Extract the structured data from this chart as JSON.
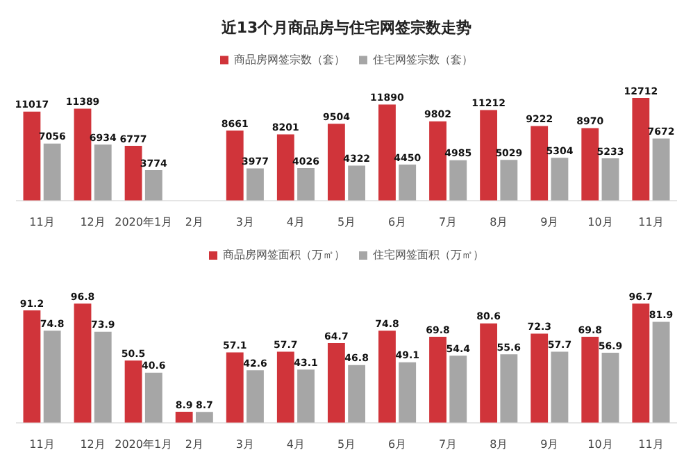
{
  "chart_data": [
    {
      "type": "bar",
      "title": "近13个月商品房与住宅网签宗数走势",
      "categories": [
        "11月",
        "12月",
        "2020年1月",
        "2月",
        "3月",
        "4月",
        "5月",
        "6月",
        "7月",
        "8月",
        "9月",
        "10月",
        "11月"
      ],
      "series": [
        {
          "name": "商品房网签宗数（套）",
          "color": "#d0343a",
          "values": [
            11017,
            11389,
            6777,
            null,
            8661,
            8201,
            9504,
            11890,
            9802,
            11212,
            9222,
            8970,
            12712
          ]
        },
        {
          "name": "住宅网签宗数（套）",
          "color": "#a6a6a6",
          "values": [
            7056,
            6934,
            3774,
            null,
            3977,
            4026,
            4322,
            4450,
            4985,
            5029,
            5304,
            5233,
            7672
          ]
        }
      ],
      "data_labels": true,
      "legend": "top"
    },
    {
      "type": "bar",
      "categories": [
        "11月",
        "12月",
        "2020年1月",
        "2月",
        "3月",
        "4月",
        "5月",
        "6月",
        "7月",
        "8月",
        "9月",
        "10月",
        "11月"
      ],
      "series": [
        {
          "name": "商品房网签面积（万㎡）",
          "color": "#d0343a",
          "values": [
            91.2,
            96.8,
            50.5,
            8.9,
            57.1,
            57.7,
            64.7,
            74.8,
            69.8,
            80.6,
            72.3,
            69.8,
            96.7
          ]
        },
        {
          "name": "住宅网签面积（万㎡）",
          "color": "#a6a6a6",
          "values": [
            74.8,
            73.9,
            40.6,
            8.7,
            42.6,
            43.1,
            46.8,
            49.1,
            54.4,
            55.6,
            57.7,
            56.9,
            81.9
          ]
        }
      ],
      "data_labels": true,
      "legend": "top"
    }
  ]
}
